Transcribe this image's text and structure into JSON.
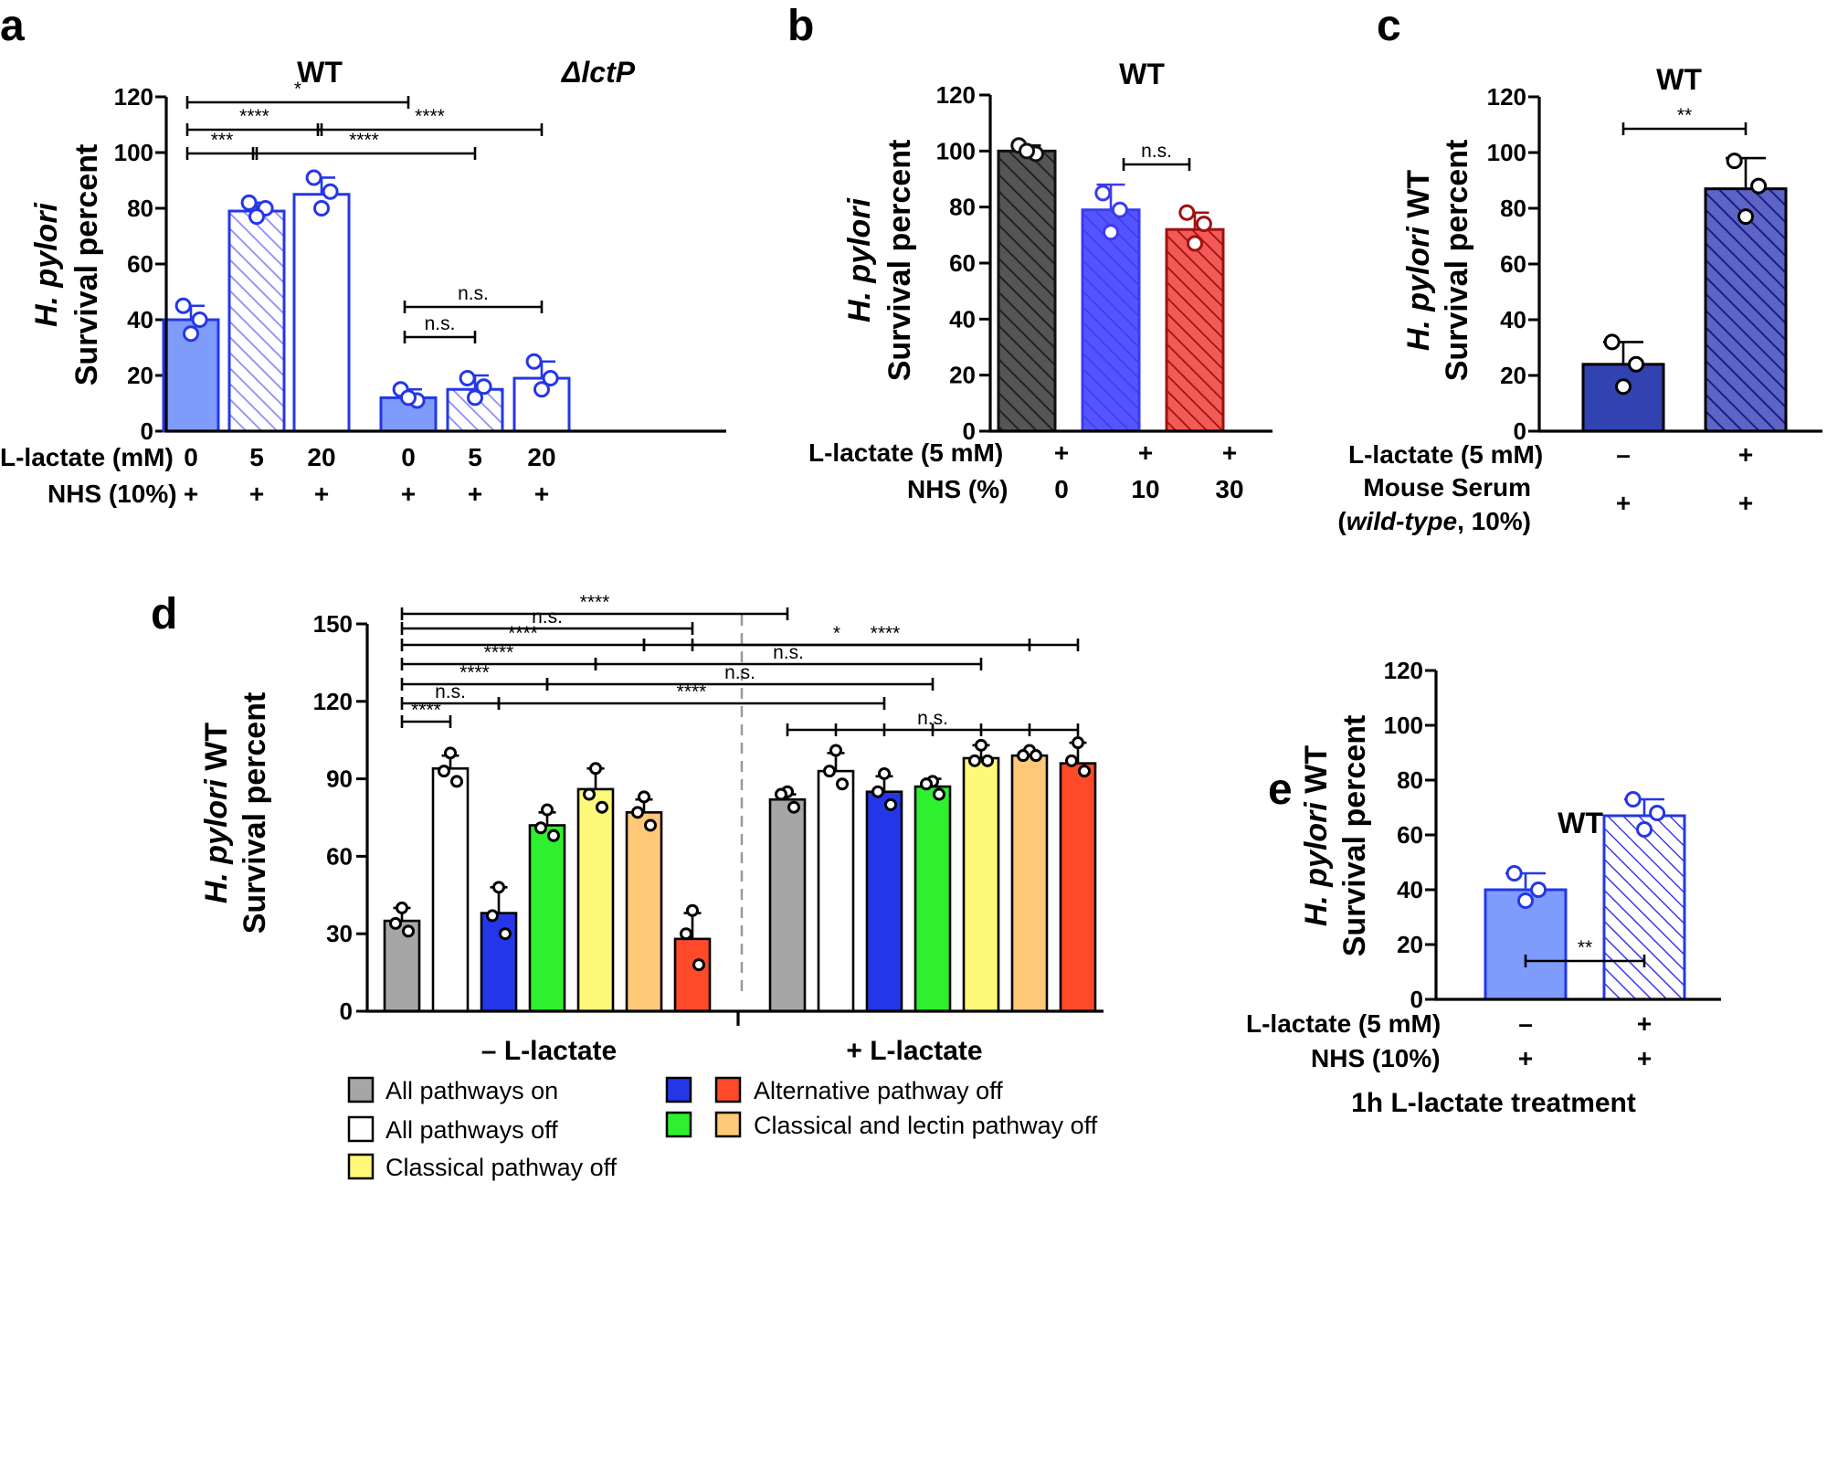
{
  "chart_data": [
    {
      "panel": "a",
      "type": "bar",
      "groups": [
        "WT",
        "ΔlctP"
      ],
      "categories": [
        "0",
        "5",
        "20",
        "0",
        "5",
        "20"
      ],
      "series": [
        {
          "name": "H. pylori survival percent",
          "values": [
            40,
            79,
            85,
            12,
            15,
            19
          ],
          "errors": [
            5,
            3,
            6,
            3,
            5,
            6
          ]
        }
      ],
      "points": [
        [
          45,
          40,
          35
        ],
        [
          82,
          80,
          77
        ],
        [
          91,
          86,
          80
        ],
        [
          15,
          11,
          12
        ],
        [
          19,
          16,
          12
        ],
        [
          25,
          19,
          15
        ]
      ],
      "fills": [
        "solid",
        "hatch",
        "white",
        "solid",
        "hatch",
        "white"
      ],
      "ylabel": "Survival percent",
      "ylabel_italic": "H. pylori",
      "ylim": [
        0,
        120
      ],
      "yticks": [
        "0",
        "20",
        "40",
        "60",
        "80",
        "100",
        "120"
      ],
      "row_labels": [
        "L-lactate (mM)",
        "NHS (10%)"
      ],
      "row2_values": [
        "+",
        "+",
        "+",
        "+",
        "+",
        "+"
      ],
      "significance": [
        {
          "from": 0,
          "to": 3,
          "label": "*"
        },
        {
          "from": 0,
          "to": 2,
          "label": "****"
        },
        {
          "from": 2,
          "to": 5,
          "label": "****"
        },
        {
          "from": 0,
          "to": 1,
          "label": "***"
        },
        {
          "from": 1,
          "to": 4,
          "label": "****"
        },
        {
          "from": 3,
          "to": 5,
          "label": "n.s."
        },
        {
          "from": 3,
          "to": 4,
          "label": "n.s."
        }
      ]
    },
    {
      "panel": "b",
      "type": "bar",
      "title": "WT",
      "categories": [
        "0",
        "10",
        "30"
      ],
      "series": [
        {
          "name": "H. pylori survival percent",
          "values": [
            100,
            79,
            72
          ],
          "errors": [
            2,
            9,
            6
          ]
        }
      ],
      "points": [
        [
          102,
          99,
          100
        ],
        [
          85,
          79,
          71
        ],
        [
          78,
          74,
          67
        ]
      ],
      "colors": [
        "#555555",
        "#3b3bf0",
        "#f0403a"
      ],
      "ylabel": "Survival percent",
      "ylabel_italic": "H. pylori",
      "ylim": [
        0,
        120
      ],
      "yticks": [
        "0",
        "20",
        "40",
        "60",
        "80",
        "100",
        "120"
      ],
      "row_labels": [
        "L-lactate (5 mM)",
        "NHS (%)"
      ],
      "row1_values": [
        "+",
        "+",
        "+"
      ],
      "significance": [
        {
          "from": 1,
          "to": 2,
          "label": "n.s."
        }
      ]
    },
    {
      "panel": "c",
      "type": "bar",
      "title": "WT",
      "categories": [
        "–",
        "+"
      ],
      "series": [
        {
          "name": "H. pylori WT survival percent",
          "values": [
            24,
            87
          ],
          "errors": [
            8,
            11
          ]
        }
      ],
      "points": [
        [
          32,
          24,
          16
        ],
        [
          97,
          88,
          77
        ]
      ],
      "ylabel": "Survival percent",
      "ylabel_prefix": "H. pylori",
      "ylabel_suffix": " WT",
      "ylim": [
        0,
        120
      ],
      "yticks": [
        "0",
        "20",
        "40",
        "60",
        "80",
        "100",
        "120"
      ],
      "row_labels": [
        "L-lactate (5 mM)",
        "Mouse Serum",
        "(",
        "wild-type",
        ", 10%)"
      ],
      "row2_values": [
        "+",
        "+"
      ],
      "significance": [
        {
          "from": 0,
          "to": 1,
          "label": "**"
        }
      ]
    },
    {
      "panel": "d",
      "type": "bar",
      "groups": [
        "– L-lactate",
        "+ L-lactate"
      ],
      "legend": [
        "All pathways on",
        "All pathways off",
        "Classical pathway off",
        "Alternative pathway off",
        "Classical and lectin pathway off"
      ],
      "colors": [
        "#a6a6a6",
        "#ffffff",
        "#fff97a",
        "#2437e8",
        "#ff4a2a",
        "#2ef02e",
        "#ffc878"
      ],
      "series": [
        {
          "name": "– L-lactate",
          "values": [
            35,
            94,
            38,
            72,
            86,
            77,
            28
          ],
          "errors": [
            5,
            5,
            10,
            5,
            8,
            5,
            10
          ],
          "points": [
            [
              40,
              34,
              31
            ],
            [
              100,
              93,
              89
            ],
            [
              48,
              37,
              30
            ],
            [
              78,
              71,
              68
            ],
            [
              94,
              84,
              79
            ],
            [
              83,
              77,
              72
            ],
            [
              39,
              30,
              18
            ]
          ]
        },
        {
          "name": "+ L-lactate",
          "values": [
            82,
            93,
            85,
            87,
            98,
            99,
            96
          ],
          "errors": [
            2,
            7,
            6,
            3,
            5,
            2,
            8
          ],
          "points": [
            [
              85,
              84,
              79
            ],
            [
              101,
              93,
              88
            ],
            [
              92,
              85,
              80
            ],
            [
              89,
              88,
              84
            ],
            [
              103,
              97,
              97
            ],
            [
              101,
              99,
              99
            ],
            [
              104,
              97,
              93
            ]
          ]
        }
      ],
      "ylabel": "Survival percent",
      "ylabel_prefix": "H. pylori",
      "ylabel_suffix": " WT",
      "ylim": [
        0,
        150
      ],
      "yticks": [
        "0",
        "30",
        "60",
        "90",
        "120",
        "150"
      ],
      "significance": [
        {
          "from": 0,
          "to": 1,
          "label": "****"
        },
        {
          "from": 0,
          "to": 2,
          "label": "n.s."
        },
        {
          "from": 2,
          "to": 9,
          "label": "****"
        },
        {
          "from": 0,
          "to": 3,
          "label": "****"
        },
        {
          "from": 3,
          "to": 10,
          "label": "n.s."
        },
        {
          "from": 0,
          "to": 4,
          "label": "****"
        },
        {
          "from": 4,
          "to": 11,
          "label": "n.s."
        },
        {
          "from": 0,
          "to": 5,
          "label": "****"
        },
        {
          "from": 5,
          "to": 12,
          "label": "*"
        },
        {
          "from": 0,
          "to": 6,
          "label": "n.s."
        },
        {
          "from": 6,
          "to": 13,
          "label": "****"
        },
        {
          "from": 0,
          "to": 7,
          "label": "****"
        },
        {
          "from": 7,
          "to": 13,
          "label": "n.s."
        }
      ]
    },
    {
      "panel": "e",
      "type": "bar",
      "title": "WT",
      "categories": [
        "–",
        "+"
      ],
      "series": [
        {
          "name": "H. pylori WT survival percent",
          "values": [
            40,
            67
          ],
          "errors": [
            6,
            6
          ]
        }
      ],
      "points": [
        [
          46,
          40,
          36
        ],
        [
          73,
          68,
          62
        ]
      ],
      "ylabel": "Survival percent",
      "ylabel_prefix": "H. pylori",
      "ylabel_suffix": " WT",
      "ylim": [
        0,
        120
      ],
      "yticks": [
        "0",
        "20",
        "40",
        "60",
        "80",
        "100",
        "120"
      ],
      "row_labels": [
        "L-lactate (5 mM)",
        "NHS (10%)"
      ],
      "row2_values": [
        "+",
        "+"
      ],
      "footer": "1h L-lactate treatment",
      "significance": [
        {
          "from": 0,
          "to": 1,
          "label": "**"
        }
      ]
    }
  ],
  "panels": [
    "a",
    "b",
    "c",
    "d",
    "e"
  ]
}
